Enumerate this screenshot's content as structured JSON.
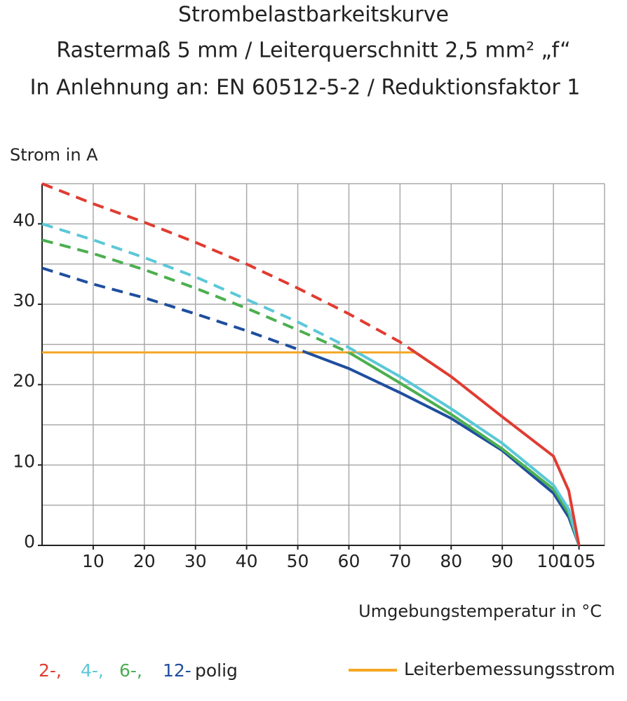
{
  "chart_data": {
    "type": "line",
    "title": "Strombelastbarkeitskurve",
    "subtitle": "Rastermaß 5 mm / Leiterquerschnitt 2,5 mm² „f“",
    "subtitle2": "In Anlehnung an: EN 60512-5-2 / Reduktionsfaktor 1",
    "y_label": "Strom in A",
    "x_label": "Umgebungstemperatur in °C",
    "x": [
      0,
      10,
      20,
      30,
      40,
      50,
      60,
      70,
      80,
      90,
      100,
      103,
      105
    ],
    "series": [
      {
        "name": "2-,",
        "color": "#e03c31",
        "values": [
          45,
          42.5,
          40.2,
          37.7,
          35,
          32,
          28.8,
          25.3,
          21,
          16,
          11.1,
          6.8,
          0
        ]
      },
      {
        "name": "4-,",
        "color": "#5bc8d8",
        "values": [
          40,
          38,
          35.8,
          33.4,
          30.6,
          27.8,
          24.6,
          21,
          17,
          12.7,
          7.5,
          4.5,
          0
        ]
      },
      {
        "name": "6-,",
        "color": "#4caf50",
        "values": [
          38,
          36.3,
          34.3,
          32,
          29.5,
          26.8,
          24,
          20.2,
          16.3,
          12,
          7,
          4,
          0
        ]
      },
      {
        "name": "12-",
        "color": "#1f4e9e",
        "values": [
          34.5,
          32.5,
          30.8,
          28.8,
          26.7,
          24.4,
          22,
          19,
          15.8,
          11.8,
          6.5,
          3.5,
          0
        ]
      }
    ],
    "legend_suffix": "polig",
    "rated_current": {
      "name": "Leiterbemessungsstrom",
      "value": 24,
      "color": "#f5a623"
    },
    "xlim": [
      0,
      110
    ],
    "ylim": [
      0,
      45
    ],
    "xticks": [
      10,
      20,
      30,
      40,
      50,
      60,
      70,
      80,
      90,
      100,
      105
    ],
    "yticks": [
      0,
      10,
      20,
      30,
      40
    ],
    "xgrid": [
      10,
      20,
      30,
      40,
      50,
      60,
      70,
      80,
      90,
      100,
      110
    ],
    "ygrid": [
      5,
      10,
      15,
      20,
      25,
      30,
      35,
      40,
      45
    ],
    "grid": true
  }
}
